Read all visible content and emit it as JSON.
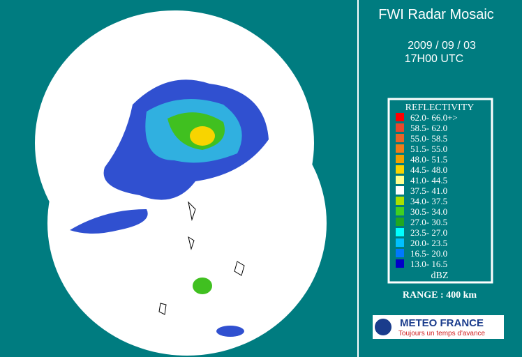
{
  "header": {
    "title": "FWI Radar Mosaic",
    "date": "2009 / 09 / 03",
    "time": "17H00 UTC"
  },
  "legend": {
    "title": "REFLECTIVITY",
    "unit": "dBZ",
    "entries": [
      {
        "label": "62.0- 66.0+>",
        "color": "#ff0000"
      },
      {
        "label": "58.5- 62.0",
        "color": "#e8482c"
      },
      {
        "label": "55.0- 58.5",
        "color": "#e86428"
      },
      {
        "label": "51.5- 55.0",
        "color": "#f07c18"
      },
      {
        "label": "48.0- 51.5",
        "color": "#f0a000"
      },
      {
        "label": "44.5- 48.0",
        "color": "#f8d400"
      },
      {
        "label": "41.0- 44.5",
        "color": "#ffff90"
      },
      {
        "label": "37.5- 41.0",
        "color": "#ffffff"
      },
      {
        "label": "34.0- 37.5",
        "color": "#a8e000"
      },
      {
        "label": "30.5- 34.0",
        "color": "#40d020"
      },
      {
        "label": "27.0- 30.5",
        "color": "#20a820"
      },
      {
        "label": "23.5- 27.0",
        "color": "#00ffff"
      },
      {
        "label": "20.0- 23.5",
        "color": "#00c0ff"
      },
      {
        "label": "16.5- 20.0",
        "color": "#0078ff"
      },
      {
        "label": "13.0- 16.5",
        "color": "#0000c8"
      }
    ]
  },
  "range": "RANGE : 400 km",
  "logo": {
    "name": "METEO FRANCE",
    "slogan": "Toujours un temps d'avance"
  }
}
